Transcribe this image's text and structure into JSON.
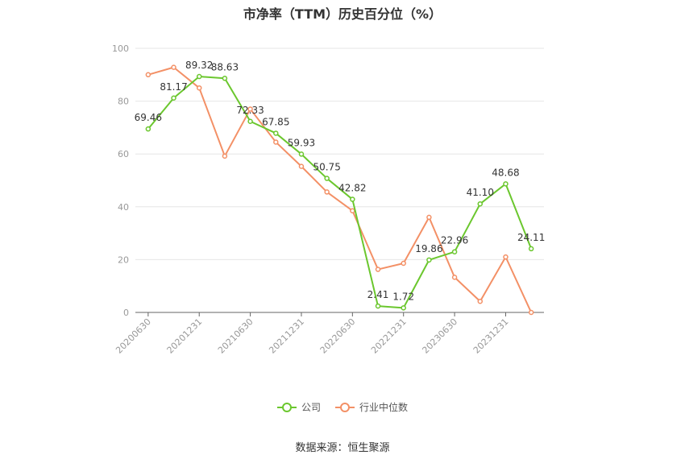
{
  "title": "市净率（TTM）历史百分位（%）",
  "source": "数据来源：恒生聚源",
  "colors": {
    "company": "#6bc72e",
    "industry": "#f39066",
    "grid": "#e6e6e6",
    "axis": "#999999"
  },
  "chart_data": {
    "type": "line",
    "title": "市净率（TTM）历史百分位（%）",
    "xlabel": "",
    "ylabel": "",
    "ylim": [
      0,
      100
    ],
    "yticks": [
      0,
      20,
      40,
      60,
      80,
      100
    ],
    "x": [
      "20200630",
      "20200930",
      "20201231",
      "20210331",
      "20210630",
      "20210930",
      "20211231",
      "20220331",
      "20220630",
      "20220930",
      "20221231",
      "20230331",
      "20230630",
      "20230930",
      "20231231",
      "20240331"
    ],
    "tick_labels": [
      "20200630",
      "20201231",
      "20210630",
      "20211231",
      "20220630",
      "20221231",
      "20230630",
      "20231231"
    ],
    "legend_position": "bottom",
    "grid": true,
    "series": [
      {
        "name": "公司",
        "values": [
          69.46,
          81.17,
          89.32,
          88.63,
          72.33,
          67.85,
          59.93,
          50.75,
          42.82,
          2.41,
          1.72,
          19.86,
          22.96,
          41.1,
          48.68,
          24.11
        ],
        "labels": [
          "69.46",
          "81.17",
          "89.32",
          "88.63",
          "72.33",
          "67.85",
          "59.93",
          "50.75",
          "42.82",
          "2.41",
          "1.72",
          "19.86",
          "22.96",
          "41.10",
          "48.68",
          "24.11"
        ]
      },
      {
        "name": "行业中位数",
        "values": [
          90.0,
          92.8,
          85.0,
          59.2,
          77.0,
          64.5,
          55.3,
          45.6,
          38.5,
          16.3,
          18.6,
          36.0,
          13.3,
          4.2,
          21.0,
          0.0
        ]
      }
    ]
  }
}
